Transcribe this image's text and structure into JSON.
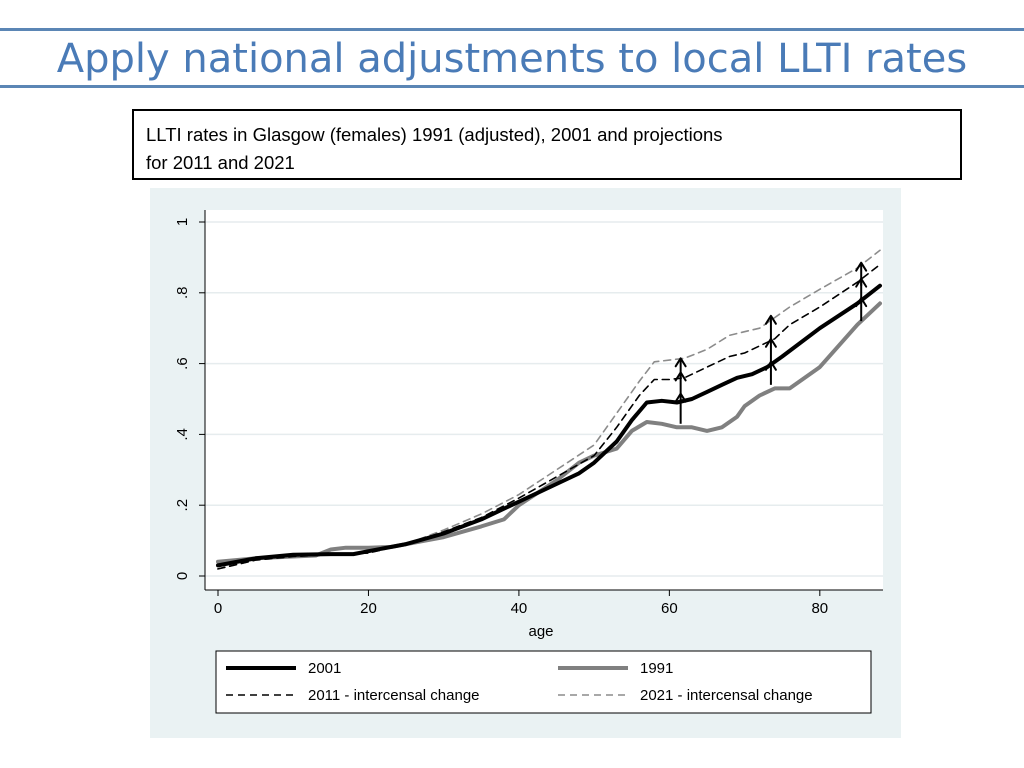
{
  "slide": {
    "title": "Apply national adjustments to local LLTI rates",
    "caption_lines": [
      "LLTI rates in Glasgow (females) 1991 (adjusted), 2001 and projections",
      "for 2011 and 2021"
    ]
  },
  "colors": {
    "title": "#4a7bb7",
    "rule": "#5b86b5",
    "chart_background": "#eaf2f3",
    "plot_background": "#ffffff",
    "series_2001": "#000000",
    "series_1991": "#808080",
    "series_2011": "#000000",
    "series_2021": "#8c8c8c"
  },
  "chart_data": {
    "type": "line",
    "xlabel": "age",
    "ylabel": "",
    "xlim": [
      0,
      90
    ],
    "ylim": [
      0,
      1
    ],
    "xticks": [
      {
        "value": 0,
        "label": "0"
      },
      {
        "value": 20,
        "label": "20"
      },
      {
        "value": 40,
        "label": "40"
      },
      {
        "value": 60,
        "label": "60"
      },
      {
        "value": 80,
        "label": "80"
      }
    ],
    "yticks": [
      {
        "value": 0,
        "label": "0"
      },
      {
        "value": 0.2,
        "label": ".2"
      },
      {
        "value": 0.4,
        "label": ".4"
      },
      {
        "value": 0.6,
        "label": ".6"
      },
      {
        "value": 0.8,
        "label": ".8"
      },
      {
        "value": 1,
        "label": "1"
      }
    ],
    "grid": true,
    "legend_position": "bottom",
    "series": [
      {
        "name": "2001",
        "style": "solid-thick",
        "color": "#000000",
        "x": [
          0,
          5,
          10,
          15,
          18,
          20,
          25,
          30,
          35,
          38,
          40,
          45,
          48,
          50,
          53,
          55,
          57,
          59,
          61,
          63,
          65,
          67,
          69,
          71,
          73,
          75,
          80,
          85,
          88
        ],
        "y": [
          0.03,
          0.05,
          0.06,
          0.062,
          0.062,
          0.07,
          0.09,
          0.12,
          0.16,
          0.19,
          0.21,
          0.26,
          0.29,
          0.32,
          0.38,
          0.44,
          0.49,
          0.495,
          0.49,
          0.5,
          0.52,
          0.54,
          0.56,
          0.57,
          0.59,
          0.62,
          0.7,
          0.77,
          0.82
        ]
      },
      {
        "name": "1991",
        "style": "solid-grey",
        "color": "#808080",
        "x": [
          0,
          5,
          10,
          13,
          15,
          17,
          20,
          23,
          25,
          30,
          35,
          38,
          40,
          45,
          48,
          50,
          53,
          55,
          57,
          59,
          61,
          63,
          65,
          67,
          69,
          70,
          72,
          74,
          76,
          80,
          85,
          88
        ],
        "y": [
          0.04,
          0.05,
          0.055,
          0.058,
          0.075,
          0.08,
          0.08,
          0.082,
          0.09,
          0.11,
          0.14,
          0.16,
          0.2,
          0.27,
          0.32,
          0.34,
          0.36,
          0.41,
          0.435,
          0.43,
          0.42,
          0.42,
          0.41,
          0.42,
          0.45,
          0.48,
          0.51,
          0.53,
          0.53,
          0.59,
          0.71,
          0.77
        ]
      },
      {
        "name": "2011 - intercensal change",
        "style": "dashed",
        "color": "#000000",
        "x": [
          0,
          5,
          10,
          15,
          20,
          25,
          30,
          35,
          40,
          45,
          50,
          53,
          56,
          58,
          60,
          62,
          65,
          68,
          70,
          72,
          74,
          76,
          80,
          85,
          88
        ],
        "y": [
          0.02,
          0.045,
          0.055,
          0.06,
          0.065,
          0.09,
          0.125,
          0.165,
          0.22,
          0.28,
          0.34,
          0.42,
          0.51,
          0.555,
          0.555,
          0.56,
          0.59,
          0.62,
          0.63,
          0.65,
          0.67,
          0.71,
          0.76,
          0.83,
          0.88
        ]
      },
      {
        "name": "2021 - intercensal change",
        "style": "dashed-grey",
        "color": "#8c8c8c",
        "x": [
          0,
          5,
          10,
          15,
          20,
          25,
          30,
          35,
          40,
          45,
          50,
          53,
          56,
          58,
          60,
          62,
          65,
          68,
          70,
          72,
          74,
          76,
          80,
          85,
          88
        ],
        "y": [
          0.02,
          0.045,
          0.055,
          0.06,
          0.065,
          0.09,
          0.13,
          0.175,
          0.23,
          0.3,
          0.37,
          0.46,
          0.55,
          0.605,
          0.61,
          0.615,
          0.64,
          0.68,
          0.69,
          0.7,
          0.73,
          0.76,
          0.81,
          0.87,
          0.92
        ]
      }
    ],
    "annotations": [
      {
        "type": "arrow",
        "x": 61.5,
        "from": 0.43,
        "to": 0.515
      },
      {
        "type": "arrow",
        "x": 61.5,
        "from": 0.51,
        "to": 0.575
      },
      {
        "type": "arrow",
        "x": 61.5,
        "from": 0.56,
        "to": 0.615
      },
      {
        "type": "arrow",
        "x": 73.5,
        "from": 0.54,
        "to": 0.605
      },
      {
        "type": "arrow",
        "x": 73.5,
        "from": 0.6,
        "to": 0.67
      },
      {
        "type": "arrow",
        "x": 73.5,
        "from": 0.66,
        "to": 0.735
      },
      {
        "type": "arrow",
        "x": 85.5,
        "from": 0.72,
        "to": 0.785
      },
      {
        "type": "arrow",
        "x": 85.5,
        "from": 0.77,
        "to": 0.84
      },
      {
        "type": "arrow",
        "x": 85.5,
        "from": 0.82,
        "to": 0.885
      }
    ]
  }
}
